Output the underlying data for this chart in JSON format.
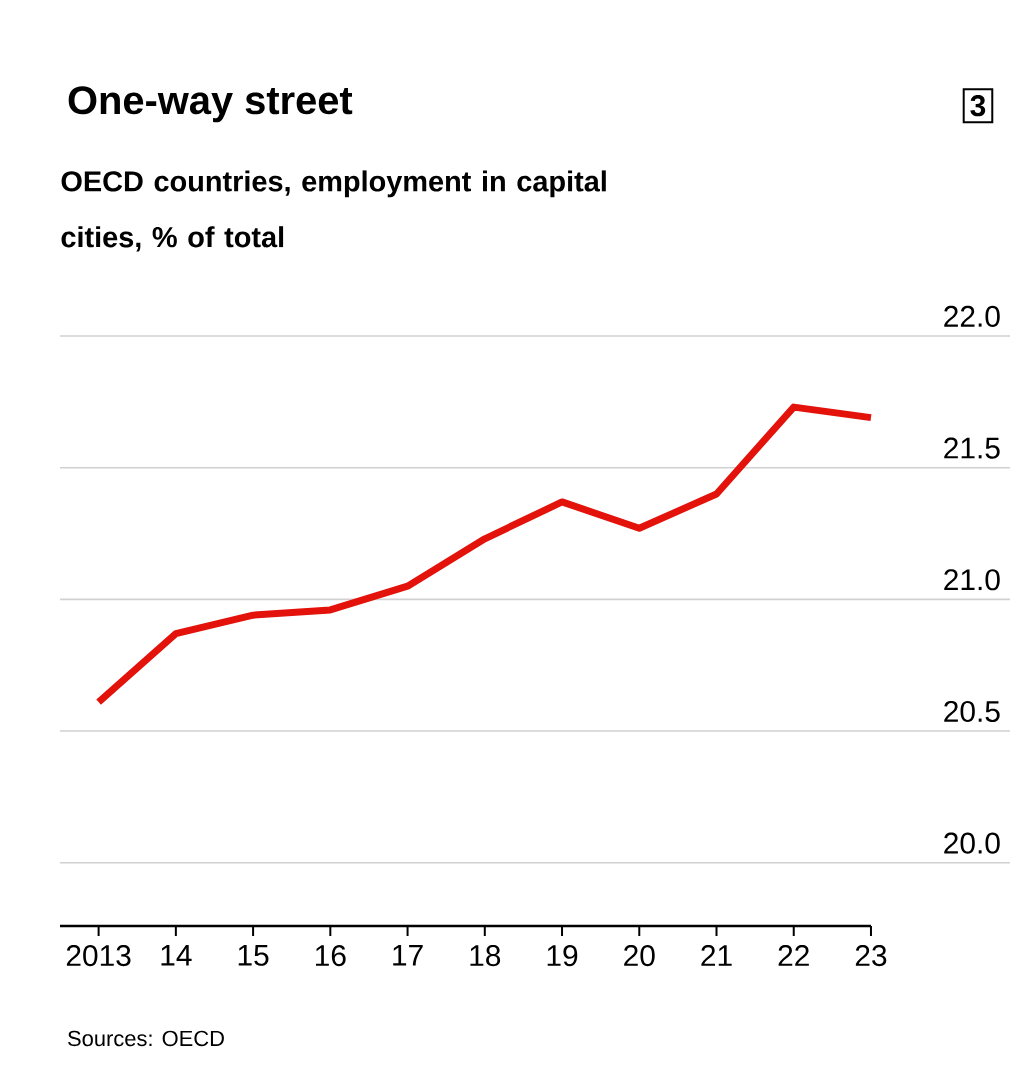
{
  "chart_data": {
    "type": "line",
    "title": "One-way street",
    "subtitle": "OECD countries, employment in capital cities, % of total",
    "annotations": [
      "3",
      "Sources: OECD"
    ],
    "x": [
      2013,
      2014,
      2015,
      2016,
      2017,
      2018,
      2019,
      2020,
      2021,
      2022,
      2023
    ],
    "series": [
      {
        "color": "#e3120b",
        "values": [
          20.61,
          20.87,
          20.94,
          20.96,
          21.05,
          21.23,
          21.37,
          21.27,
          21.4,
          21.73,
          21.69
        ]
      }
    ],
    "xlim": [
      2012.5,
      2024.8
    ],
    "xticks": [
      2013,
      {
        "value": 2014,
        "label": "14"
      },
      {
        "value": 2015,
        "label": "15"
      },
      {
        "value": 2016,
        "label": "16"
      },
      {
        "value": 2017,
        "label": "17"
      },
      {
        "value": 2018,
        "label": "18"
      },
      {
        "value": 2019,
        "label": "19"
      },
      {
        "value": 2020,
        "label": "20"
      },
      {
        "value": 2021,
        "label": "21"
      },
      {
        "value": 2022,
        "label": "22"
      },
      {
        "value": 2023,
        "label": "23"
      }
    ],
    "ylim": [
      19.76,
      22
    ],
    "yticks": [
      {
        "value": 20,
        "label": "20.0"
      },
      {
        "value": 20.5,
        "label": "20.5"
      },
      {
        "value": 21,
        "label": "21.0"
      },
      {
        "value": 21.5,
        "label": "21.5"
      },
      {
        "value": 22,
        "label": "22.0"
      }
    ],
    "grid": "y"
  }
}
